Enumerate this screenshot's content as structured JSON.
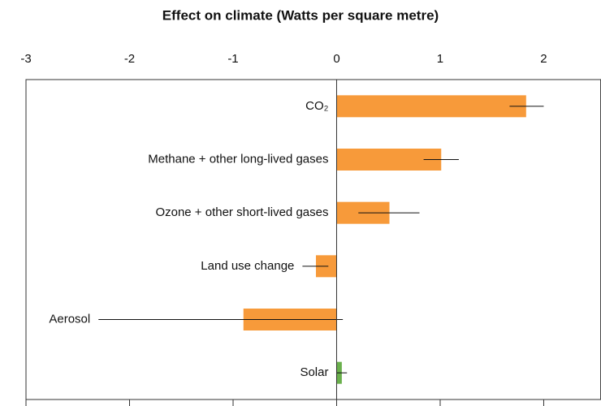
{
  "chart_data": {
    "type": "bar",
    "orientation": "horizontal",
    "title": "Effect on climate (Watts per square metre)",
    "categories": [
      "CO₂",
      "Methane + other long-lived gases",
      "Ozone + other short-lived gases",
      "Land use change",
      "Aerosol",
      "Solar"
    ],
    "values": [
      1.83,
      1.01,
      0.51,
      -0.2,
      -0.9,
      0.05
    ],
    "error_low": [
      1.67,
      0.84,
      0.21,
      -0.33,
      -2.3,
      0
    ],
    "error_high": [
      2.0,
      1.18,
      0.8,
      -0.08,
      0.06,
      0.1
    ],
    "colors": [
      "#f79a3a",
      "#f79a3a",
      "#f79a3a",
      "#f79a3a",
      "#f79a3a",
      "#6ab04c"
    ],
    "xlim": [
      -3,
      2.55
    ],
    "xticks": [
      -3,
      -2,
      -1,
      0,
      1,
      2
    ]
  }
}
